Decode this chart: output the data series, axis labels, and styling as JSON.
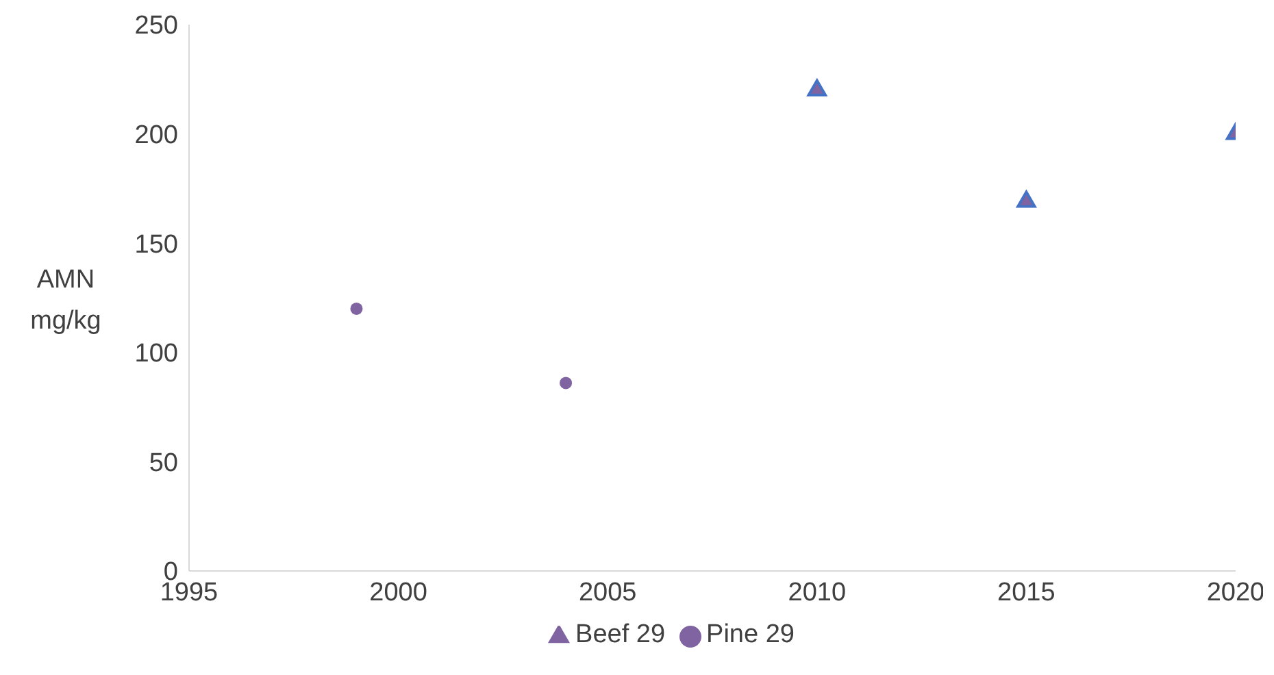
{
  "chart_data": {
    "type": "scatter",
    "ylabel": "AMN mg/kg",
    "xlim": [
      1995,
      2020
    ],
    "xticks": [
      1995,
      2000,
      2005,
      2010,
      2015,
      2020
    ],
    "ylim": [
      0,
      250
    ],
    "yticks": [
      0,
      50,
      100,
      150,
      200,
      250
    ],
    "grid": false,
    "legend": "bottom",
    "series": [
      {
        "name": "Pine 29",
        "color": "#8064a2",
        "marker": "circle",
        "x": [
          1999,
          2004
        ],
        "values": [
          120,
          86
        ]
      },
      {
        "name": "Beef 29",
        "color": "#8064a2",
        "marker": "triangle",
        "x": [
          2010,
          2015,
          2020
        ],
        "values": [
          220,
          169,
          200
        ]
      }
    ]
  }
}
